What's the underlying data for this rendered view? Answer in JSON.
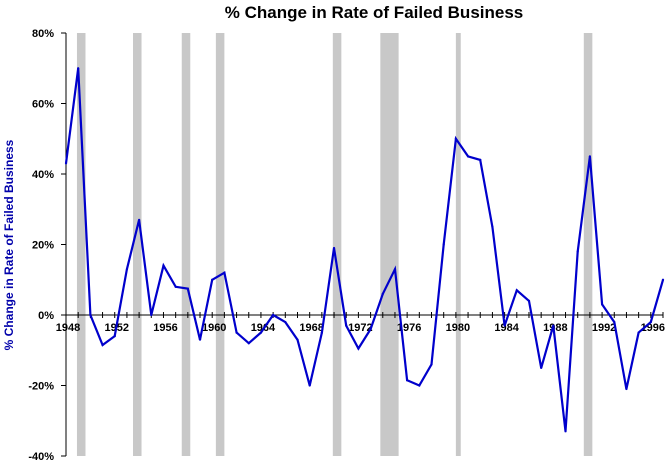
{
  "colors": {
    "line": "#0000cc",
    "axis": "#000000",
    "recession_band": "#c8c8c8",
    "ylabel": "#0000aa"
  },
  "chart_data": {
    "type": "line",
    "title": "% Change in Rate of Failed Business",
    "ylabel": "% Change in Rate of Failed Business",
    "xlabel": "",
    "xlim": [
      1948,
      1997
    ],
    "ylim": [
      -40,
      80
    ],
    "yticks": [
      {
        "value": 80,
        "label": "80%"
      },
      {
        "value": 60,
        "label": "60%"
      },
      {
        "value": 40,
        "label": "40%"
      },
      {
        "value": 20,
        "label": "20%"
      },
      {
        "value": 0,
        "label": "0%"
      },
      {
        "value": -20,
        "label": "-20%"
      },
      {
        "value": -40,
        "label": "-40%"
      }
    ],
    "xticks": [
      {
        "value": 1948,
        "label": "1948"
      },
      {
        "value": 1952,
        "label": "1952"
      },
      {
        "value": 1956,
        "label": "1956"
      },
      {
        "value": 1960,
        "label": "1960"
      },
      {
        "value": 1964,
        "label": "1964"
      },
      {
        "value": 1968,
        "label": "1968"
      },
      {
        "value": 1972,
        "label": "1972"
      },
      {
        "value": 1976,
        "label": "1976"
      },
      {
        "value": 1980,
        "label": "1980"
      },
      {
        "value": 1984,
        "label": "1984"
      },
      {
        "value": 1988,
        "label": "1988"
      },
      {
        "value": 1992,
        "label": "1992"
      },
      {
        "value": 1996,
        "label": "1996"
      }
    ],
    "recession_bands": [
      [
        1948.9,
        1949.6
      ],
      [
        1953.5,
        1954.2
      ],
      [
        1957.5,
        1958.2
      ],
      [
        1960.3,
        1961.0
      ],
      [
        1969.9,
        1970.6
      ],
      [
        1973.8,
        1975.3
      ],
      [
        1980.0,
        1980.4
      ],
      [
        1990.5,
        1991.2
      ]
    ],
    "series": [
      {
        "x": [
          1948,
          1949,
          1950,
          1951,
          1952,
          1953,
          1954,
          1955,
          1956,
          1957,
          1958,
          1959,
          1960,
          1961,
          1962,
          1963,
          1964,
          1965,
          1966,
          1967,
          1968,
          1969,
          1970,
          1971,
          1972,
          1973,
          1974,
          1975,
          1976,
          1977,
          1978,
          1979,
          1980,
          1981,
          1982,
          1983,
          1984,
          1985,
          1986,
          1987,
          1988,
          1989,
          1990,
          1991,
          1992,
          1993,
          1994,
          1995,
          1996,
          1997
        ],
        "y": [
          43,
          70,
          0,
          -8.5,
          -6,
          13,
          27,
          0,
          14,
          8,
          7.5,
          -7,
          10,
          12,
          -5,
          -8,
          -5,
          0,
          -2,
          -7,
          -20,
          -5,
          19,
          -3,
          -9.5,
          -4,
          6,
          13,
          -18.5,
          -20,
          -14,
          20,
          50,
          45,
          44,
          25,
          -3,
          7,
          4,
          -15,
          -3,
          -33,
          18,
          45,
          3,
          -2,
          -21,
          -5,
          -2,
          10
        ]
      }
    ]
  }
}
